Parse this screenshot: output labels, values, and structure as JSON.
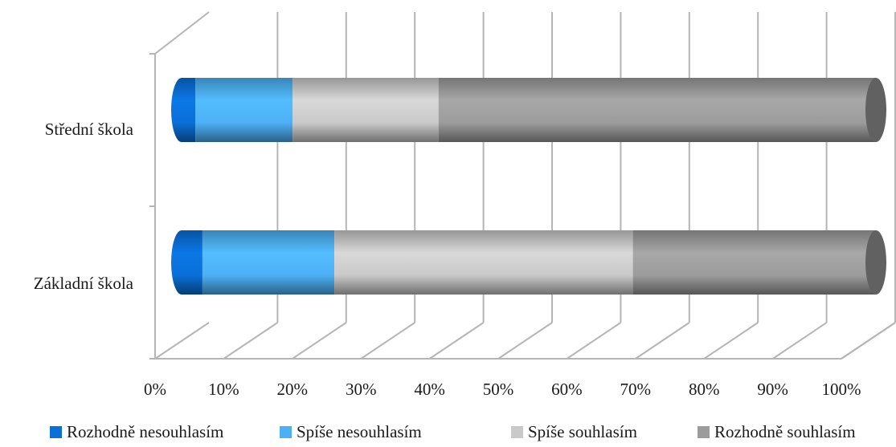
{
  "chart_data": {
    "type": "bar",
    "orientation": "horizontal",
    "stacked": "percent",
    "style": "3d-cylinder",
    "categories": [
      "Střední škola",
      "Základní škola"
    ],
    "series": [
      {
        "name": "Rozhodně nesouhlasím",
        "color": "#0a6fd6",
        "values": [
          2,
          3
        ]
      },
      {
        "name": "Spíše nesouhlasím",
        "color": "#4db0f5",
        "values": [
          14,
          19
        ]
      },
      {
        "name": "Spíše souhlasím",
        "color": "#c9c9c9",
        "values": [
          21,
          43
        ]
      },
      {
        "name": "Rozhodně souhlasím",
        "color": "#9c9c9c",
        "values": [
          63,
          35
        ]
      }
    ],
    "x_ticks": [
      "0%",
      "10%",
      "20%",
      "30%",
      "40%",
      "50%",
      "60%",
      "70%",
      "80%",
      "90%",
      "100%"
    ],
    "xlim": [
      0,
      100
    ],
    "grid": true,
    "legend_position": "bottom"
  }
}
